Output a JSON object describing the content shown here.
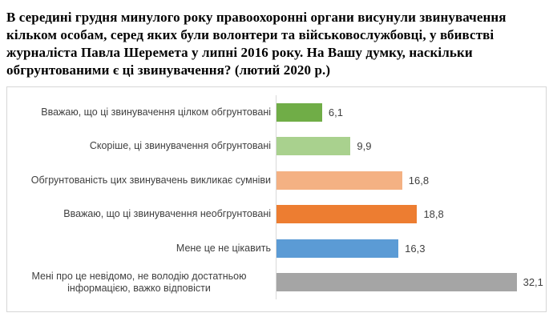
{
  "title": {
    "full_text": "В середині грудня минулого року правоохоронні органи висунули звинувачення кільком особам, серед яких були волонтери та військовослужбовці, у вбивстві журналіста Павла Шеремета у липні 2016 року. На Вашу думку, наскільки обгрунтованими є ці звинувачення? (лютий 2020 р.)",
    "lines": [
      "В середині грудня минулого року правоохоронні органи висунули звинувачення",
      "кільком особам, серед яких були волонтери та військовослужбовці, у вбивстві",
      "журналіста Павла Шеремета у липні 2016 року. На Вашу думку, наскільки",
      "обгрунтованими є ці звинувачення? (лютий 2020 р.)"
    ]
  },
  "chart_data": {
    "type": "bar",
    "orientation": "horizontal",
    "title": "В середині грудня минулого року правоохоронні органи висунули звинувачення кільком особам, серед яких були волонтери та військовослужбовці, у вбивстві журналіста Павла Шеремета у липні 2016 року. На Вашу думку, наскільки обгрунтованими є ці звинувачення? (лютий 2020 р.)",
    "xlabel": "",
    "ylabel": "",
    "units": "percent",
    "categories": [
      "Вважаю, що ці звинувачення цілком обгрунтовані",
      "Скоріше, ці звинувачення обгрунтовані",
      "Обгрунтованість цих звинувачень викликає сумніви",
      "Вважаю, що ці звинувачення необгрунтовані",
      "Мене це не цікавить",
      "Мені про це невідомо, не володію достатньою інформацією, важко відповісти"
    ],
    "values": [
      6.1,
      9.9,
      16.8,
      18.8,
      16.3,
      32.1
    ],
    "values_display": [
      "6,1",
      "9,9",
      "16,8",
      "18,8",
      "16,3",
      "32,1"
    ],
    "colors": [
      "#70AD47",
      "#A9D18E",
      "#F4B183",
      "#ED7D31",
      "#5B9BD5",
      "#A5A5A5"
    ],
    "xlim": [
      0,
      36
    ],
    "grid": false,
    "legend": false,
    "value_label_position": "outside-end"
  },
  "frame": {
    "border_color": "#d6d6d6",
    "axis_color": "#d9d9d9",
    "label_color": "#404040",
    "value_color": "#404040",
    "title_color": "#000000"
  }
}
